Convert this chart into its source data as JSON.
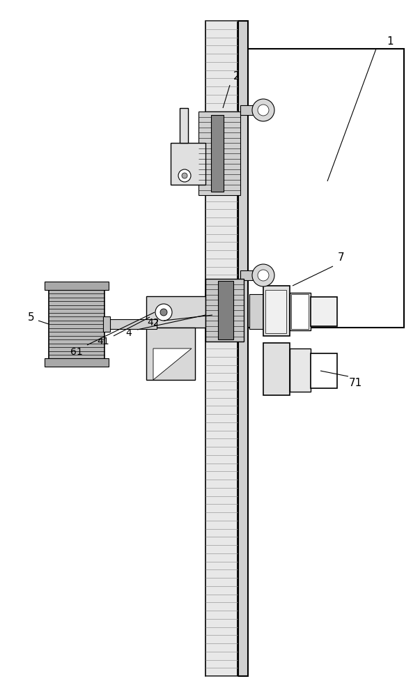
{
  "bg_color": "#ffffff",
  "line_color": "#000000",
  "fig_width": 6.03,
  "fig_height": 10.0
}
